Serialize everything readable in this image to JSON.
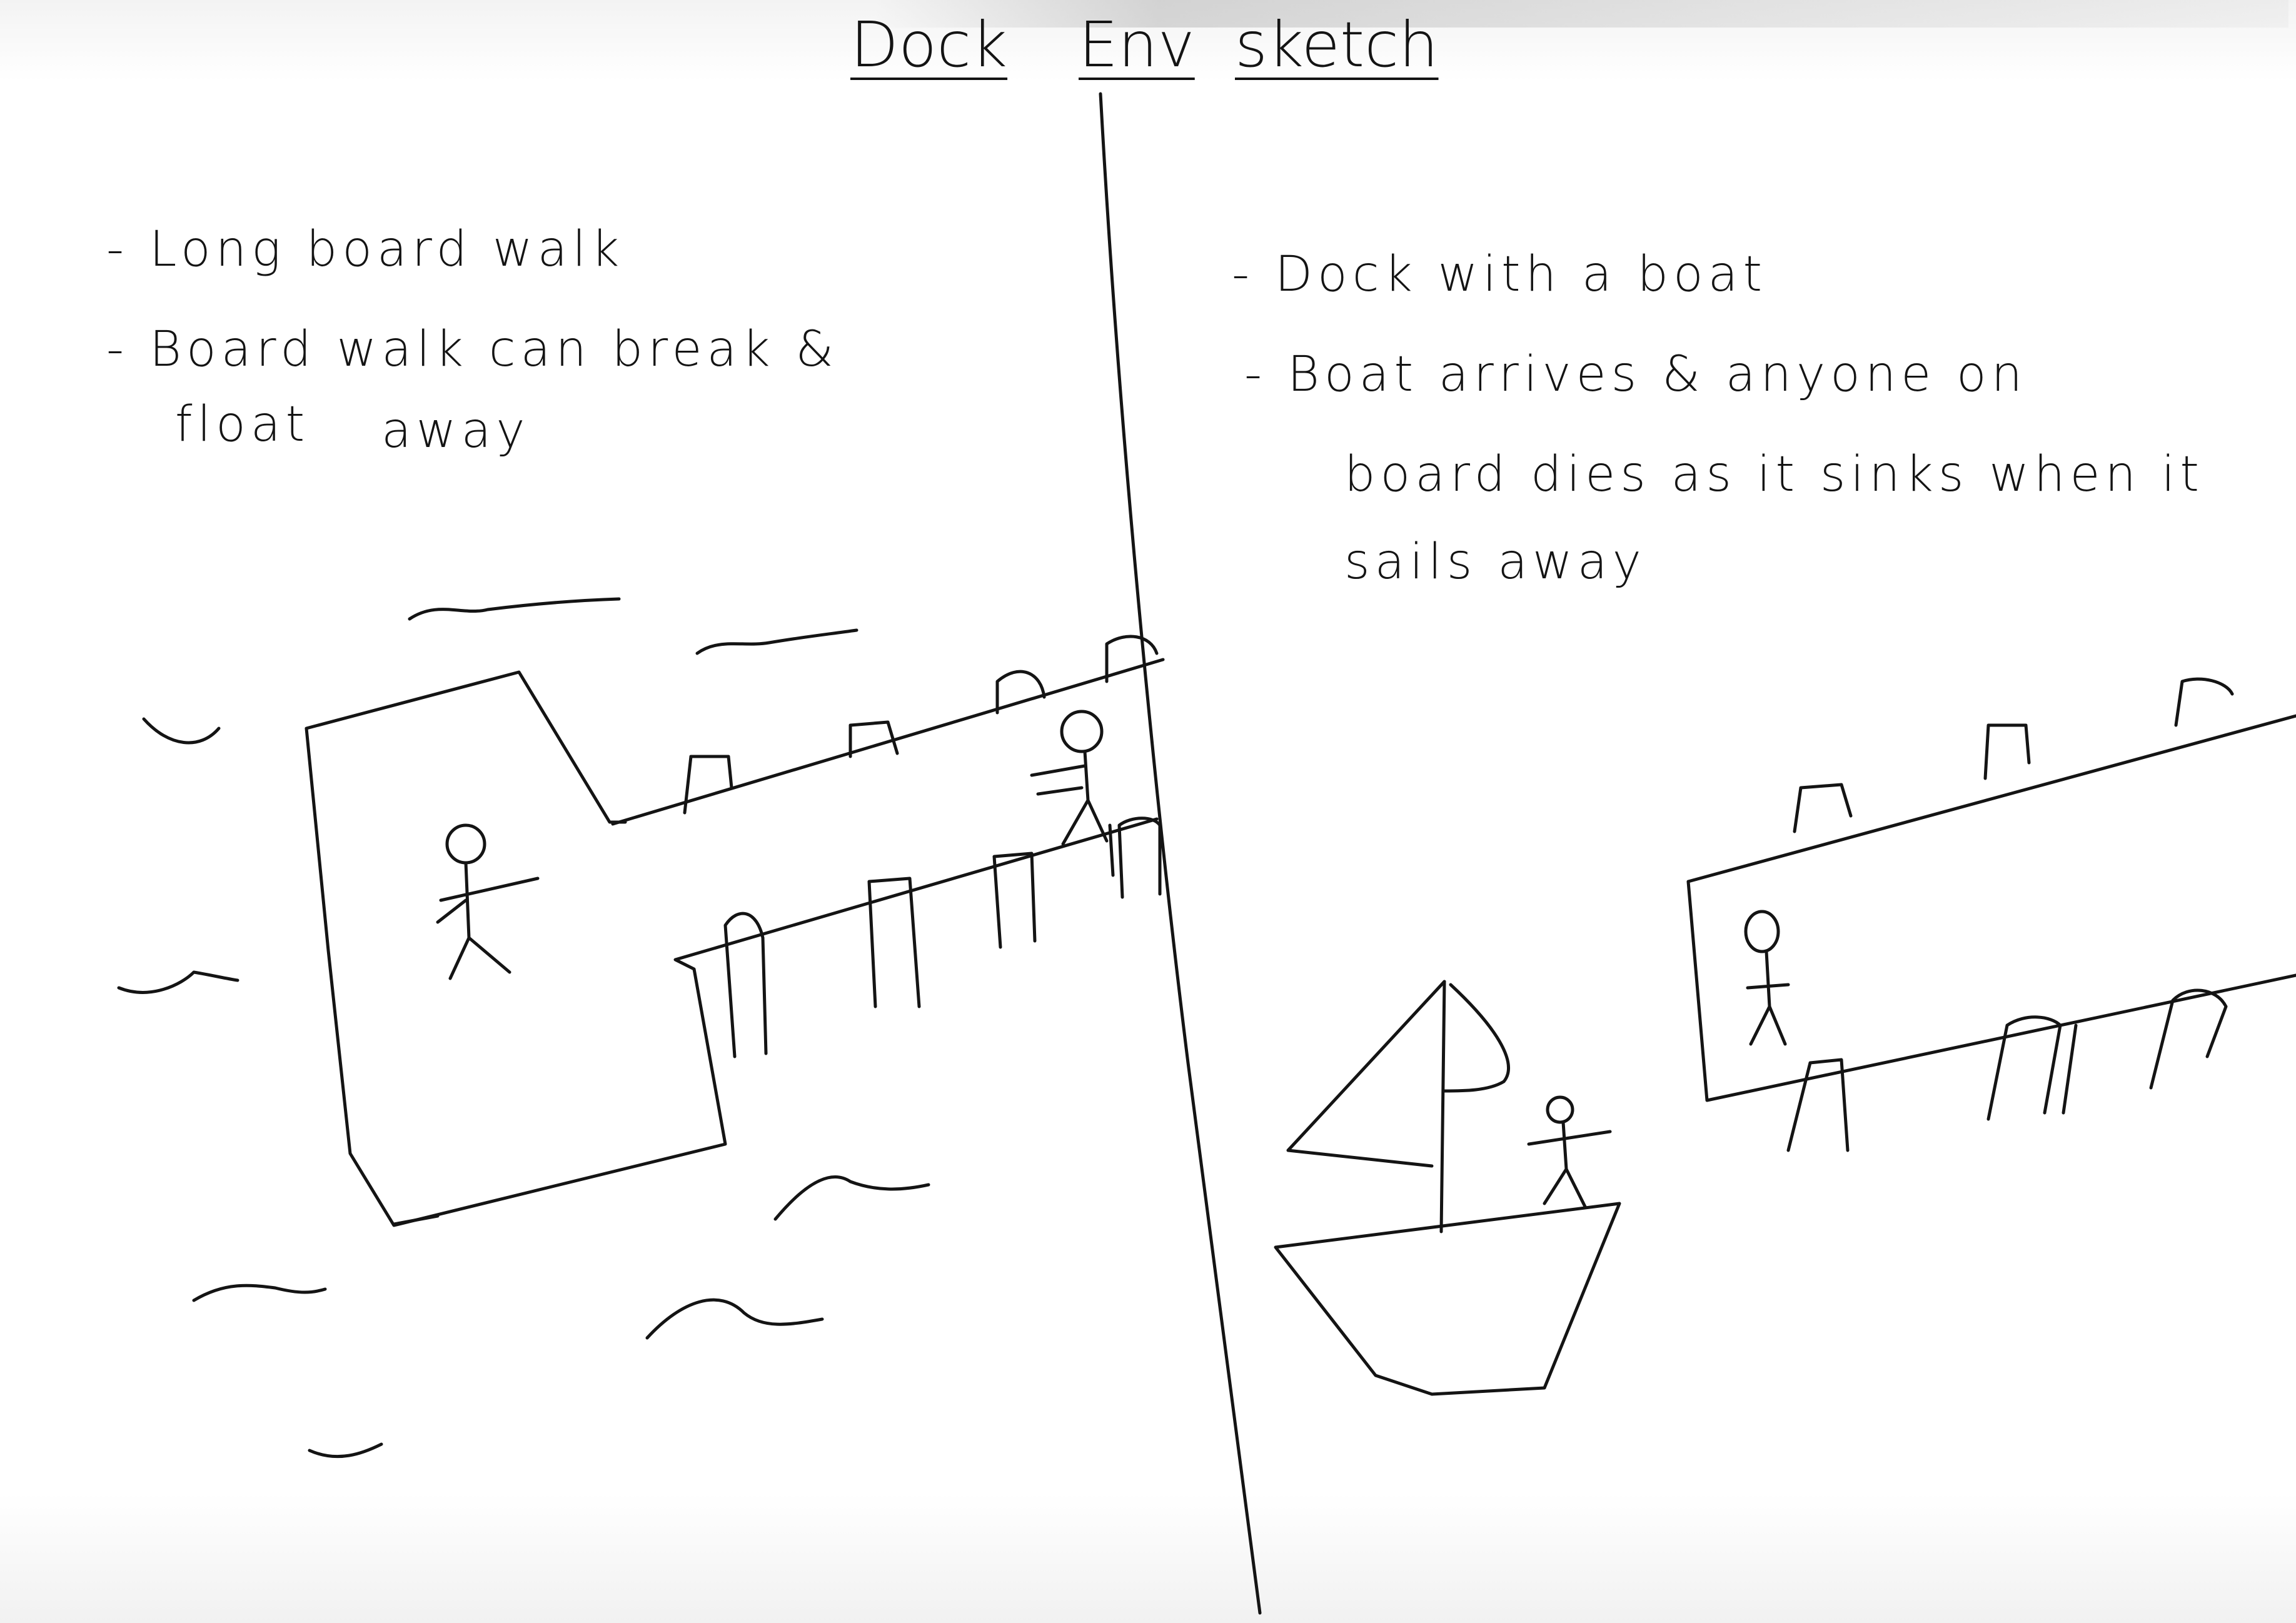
{
  "title": {
    "word1": "Dock",
    "word2": "Env",
    "word3": "sketch"
  },
  "left_notes": {
    "line1": "- Long board walk",
    "line2": "- Board walk can break &",
    "line3a": "float",
    "line3b": "away"
  },
  "right_notes": {
    "line1": "- Dock with a boat",
    "line2": "- Boat arrives & anyone on",
    "line3": "board dies as it sinks when it",
    "line4": "sails away"
  },
  "colors": {
    "ink": "#141414",
    "paper": "#ffffff"
  }
}
